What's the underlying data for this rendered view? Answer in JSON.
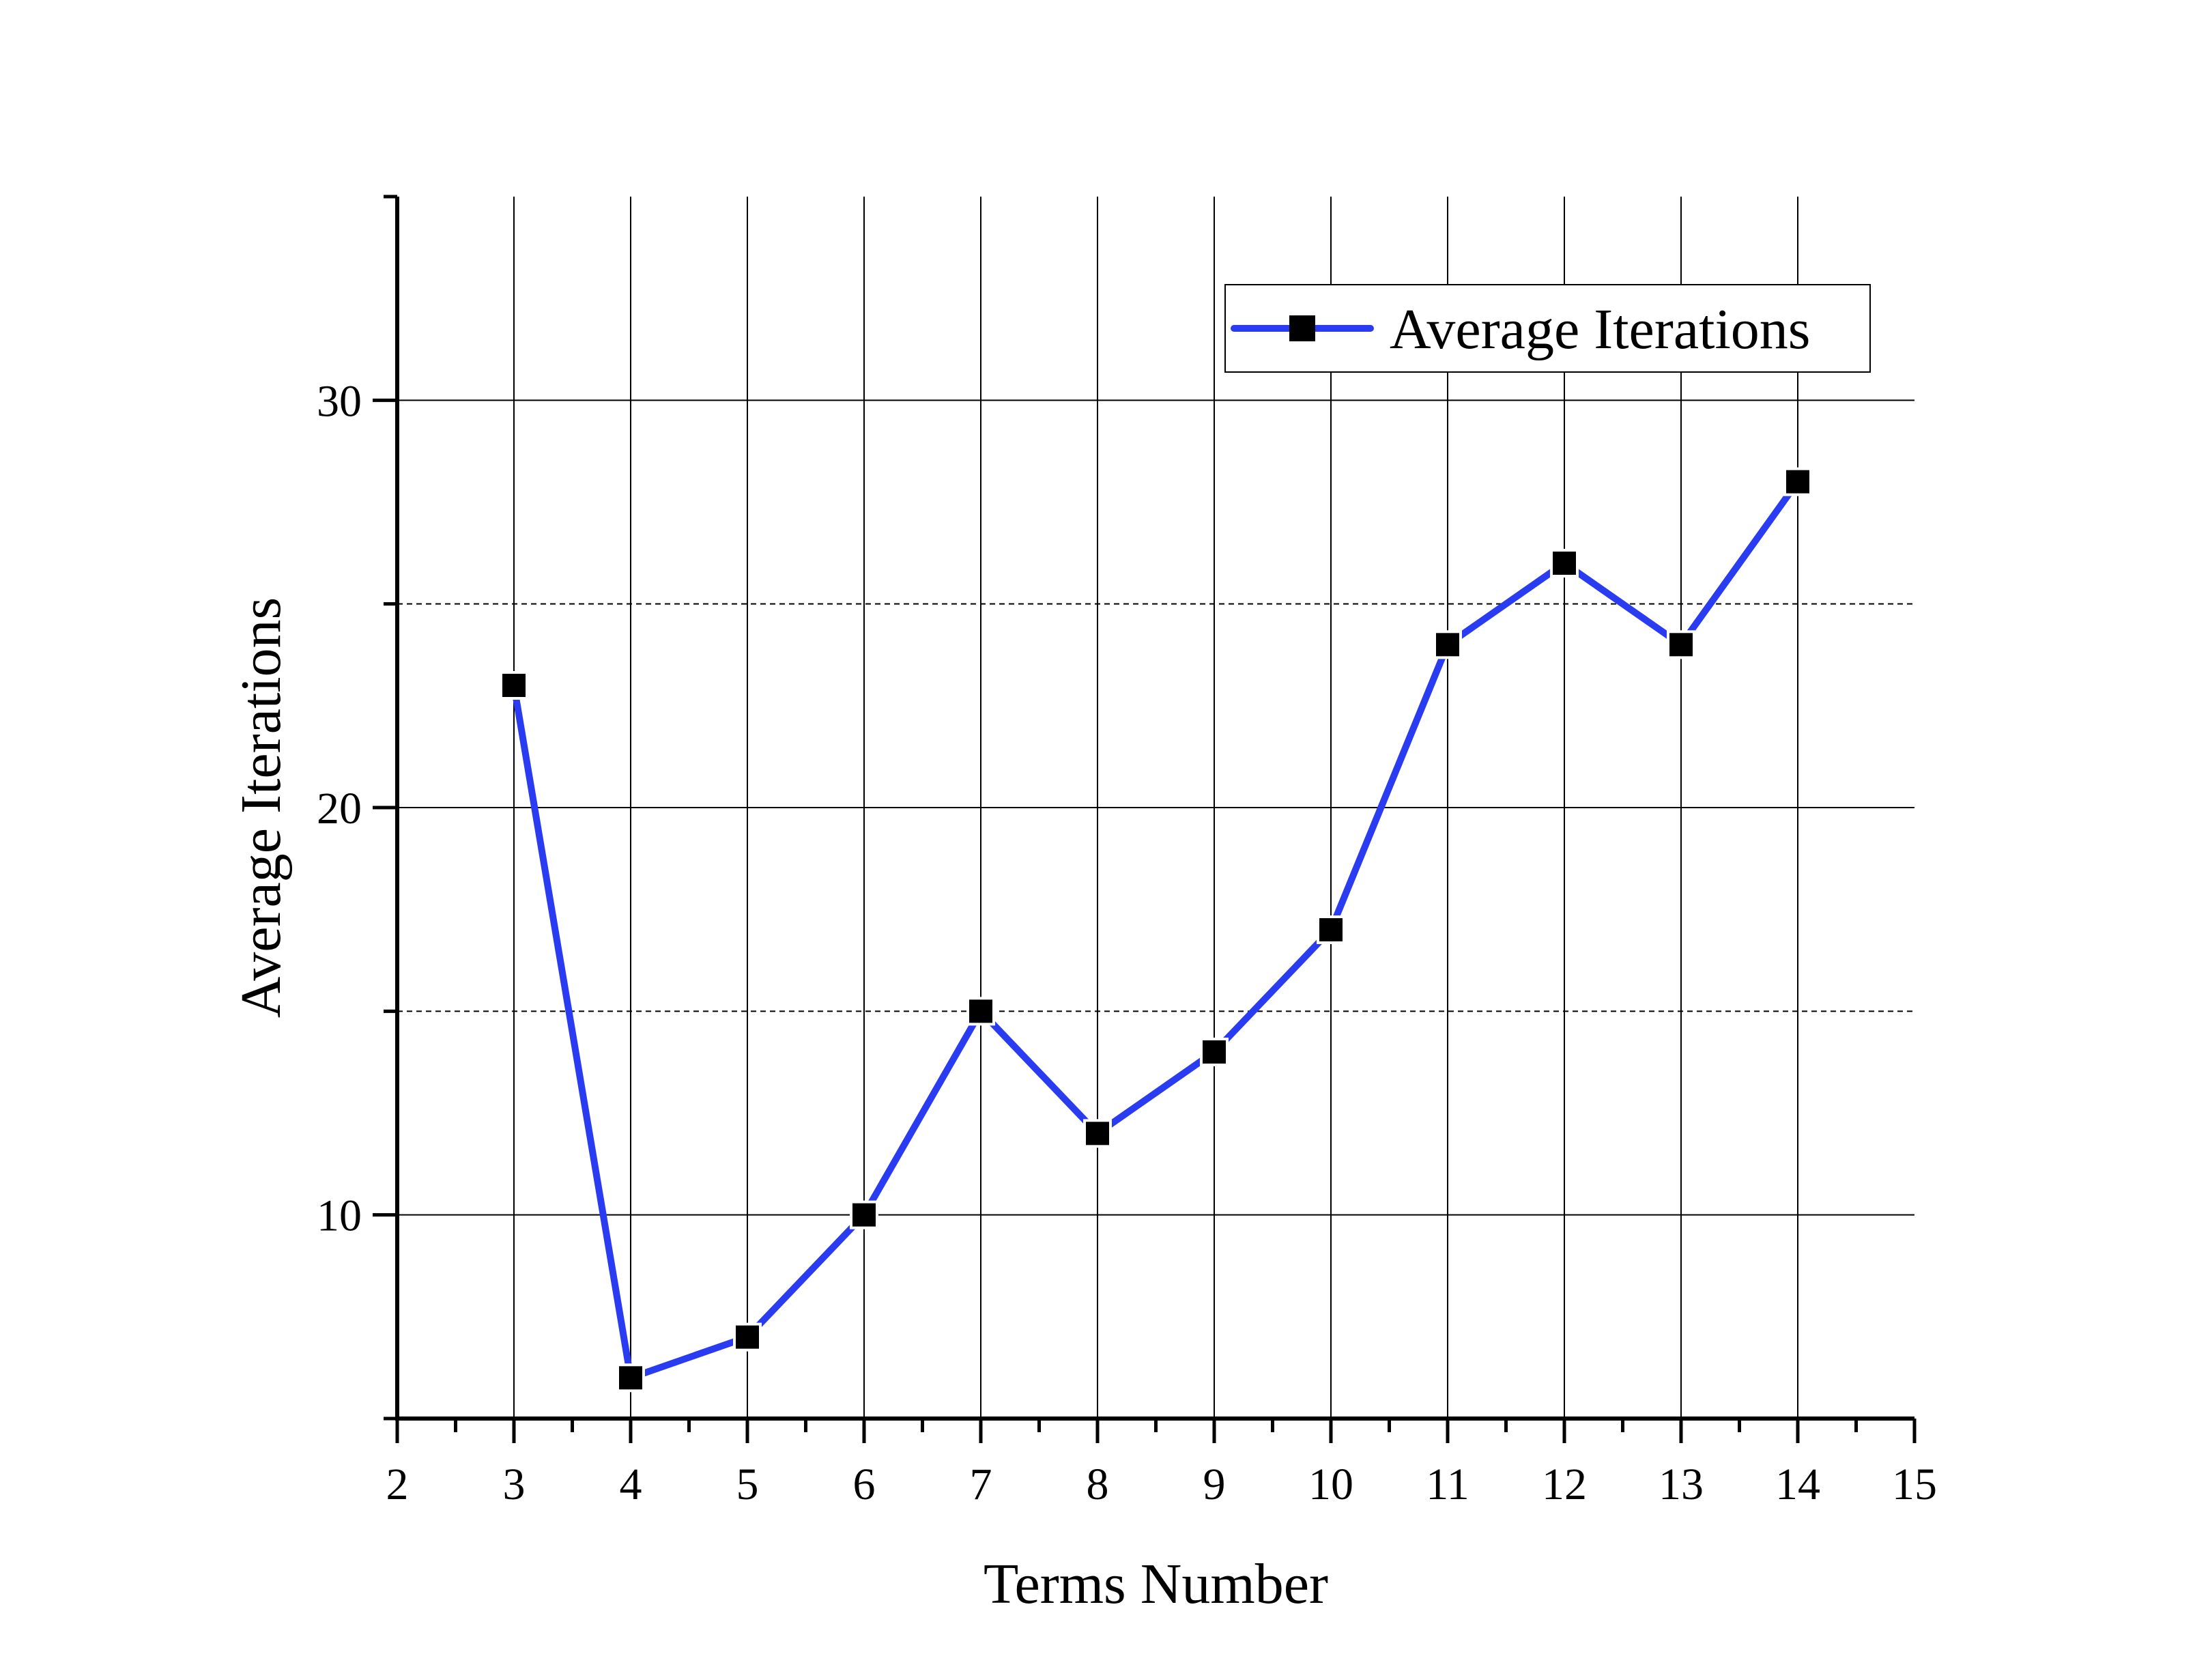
{
  "chart_data": {
    "type": "line",
    "title": "",
    "xlabel": "Terms Number",
    "ylabel": "Average Iterations",
    "xlim": [
      2,
      15
    ],
    "ylim": [
      5,
      35
    ],
    "x_ticks": [
      2,
      3,
      4,
      5,
      6,
      7,
      8,
      9,
      10,
      11,
      12,
      13,
      14,
      15
    ],
    "y_ticks": [
      10,
      20,
      30
    ],
    "grid": true,
    "legend_position": "top-right",
    "series": [
      {
        "name": "Average Iterations",
        "color": "#2a3cf2",
        "marker": "square",
        "marker_color": "#000000",
        "x": [
          3,
          4,
          5,
          6,
          7,
          8,
          9,
          10,
          11,
          12,
          13,
          14
        ],
        "y": [
          23,
          6,
          7,
          10,
          15,
          12,
          14,
          17,
          24,
          26,
          24,
          28
        ]
      }
    ]
  }
}
